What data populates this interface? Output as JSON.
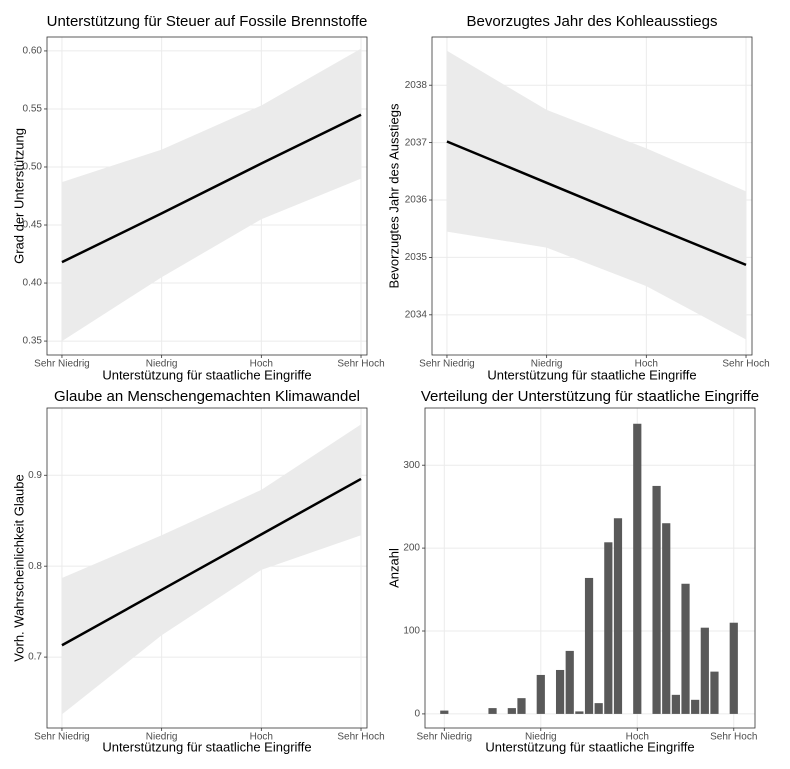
{
  "chart_data": [
    {
      "type": "line",
      "title": "Unterstützung für Steuer auf Fossile Brennstoffe",
      "x_label": "Unterstützung für staatliche Eingriffe",
      "y_label": "Grad der Unterstützung",
      "x": [
        1,
        2,
        3,
        4
      ],
      "values": [
        0.418,
        0.46,
        0.503,
        0.545
      ],
      "lower": [
        0.35,
        0.405,
        0.455,
        0.49
      ],
      "upper": [
        0.487,
        0.515,
        0.553,
        0.602
      ],
      "color": "#000000",
      "band_color": "#ebebeb",
      "xlim": [
        0.85,
        4.06
      ],
      "xticks": [
        {
          "value": 1,
          "label": "Sehr Niedrig"
        },
        {
          "value": 2,
          "label": "Niedrig"
        },
        {
          "value": 3,
          "label": "Hoch"
        },
        {
          "value": 4,
          "label": "Sehr Hoch"
        }
      ],
      "ylim": [
        0.338,
        0.612
      ],
      "yticks": [
        0.35,
        {
          "value": 0.4,
          "label": "0.40"
        },
        0.45,
        {
          "value": 0.5,
          "label": "0.50"
        },
        0.55,
        {
          "value": 0.6,
          "label": "0.60"
        }
      ],
      "grid": true
    },
    {
      "type": "line",
      "title": "Bevorzugtes Jahr des Kohleausstiegs",
      "x_label": "Unterstützung für staatliche Eingriffe",
      "y_label": "Bevorzugtes Jahr des Ausstiegs",
      "x": [
        1,
        2,
        3,
        4
      ],
      "values": [
        2037.02,
        2036.3,
        2035.58,
        2034.87
      ],
      "lower": [
        2035.45,
        2035.17,
        2034.5,
        2033.57
      ],
      "upper": [
        2038.6,
        2037.57,
        2036.9,
        2036.15
      ],
      "color": "#000000",
      "band_color": "#ebebeb",
      "xlim": [
        0.85,
        4.06
      ],
      "xticks": [
        {
          "value": 1,
          "label": "Sehr Niedrig"
        },
        {
          "value": 2,
          "label": "Niedrig"
        },
        {
          "value": 3,
          "label": "Hoch"
        },
        {
          "value": 4,
          "label": "Sehr Hoch"
        }
      ],
      "ylim": [
        2033.3,
        2038.84
      ],
      "yticks": [
        2034,
        2035,
        2036,
        2037,
        2038
      ],
      "grid": true
    },
    {
      "type": "line",
      "title": "Glaube an Menschengemachten Klimawandel",
      "x_label": "Unterstützung für staatliche Eingriffe",
      "y_label": "Vorh. Wahrscheinlichkeit Glaube",
      "x": [
        1,
        2,
        3,
        4
      ],
      "values": [
        0.713,
        0.774,
        0.835,
        0.896
      ],
      "lower": [
        0.637,
        0.724,
        0.796,
        0.834
      ],
      "upper": [
        0.787,
        0.834,
        0.884,
        0.956
      ],
      "color": "#000000",
      "band_color": "#ebebeb",
      "xlim": [
        0.85,
        4.06
      ],
      "xticks": [
        {
          "value": 1,
          "label": "Sehr Niedrig"
        },
        {
          "value": 2,
          "label": "Niedrig"
        },
        {
          "value": 3,
          "label": "Hoch"
        },
        {
          "value": 4,
          "label": "Sehr Hoch"
        }
      ],
      "ylim": [
        0.622,
        0.974
      ],
      "yticks": [
        0.7,
        0.8,
        0.9
      ],
      "grid": true
    },
    {
      "type": "bar",
      "title": "Verteilung der Unterstützung für staatliche Eingriffe",
      "x_label": "Unterstützung für staatliche Eingriffe",
      "y_label": "Anzahl",
      "x": [
        1.0,
        1.5,
        1.7,
        1.8,
        2.0,
        2.2,
        2.3,
        2.4,
        2.5,
        2.6,
        2.7,
        2.8,
        3.0,
        3.2,
        3.3,
        3.4,
        3.5,
        3.6,
        3.7,
        3.8,
        4.0
      ],
      "values": [
        4,
        7,
        7,
        19,
        47,
        53,
        76,
        3,
        164,
        13,
        207,
        236,
        350,
        275,
        230,
        23,
        157,
        17,
        104,
        51,
        110
      ],
      "color": "#595959",
      "xlim": [
        0.8,
        4.22
      ],
      "xticks": [
        {
          "value": 1,
          "label": "Sehr Niedrig"
        },
        {
          "value": 2,
          "label": "Niedrig"
        },
        {
          "value": 3,
          "label": "Hoch"
        },
        {
          "value": 4,
          "label": "Sehr Hoch"
        }
      ],
      "ylim": [
        -17,
        369
      ],
      "yticks": [
        0,
        100,
        200,
        300
      ],
      "grid": true
    }
  ]
}
